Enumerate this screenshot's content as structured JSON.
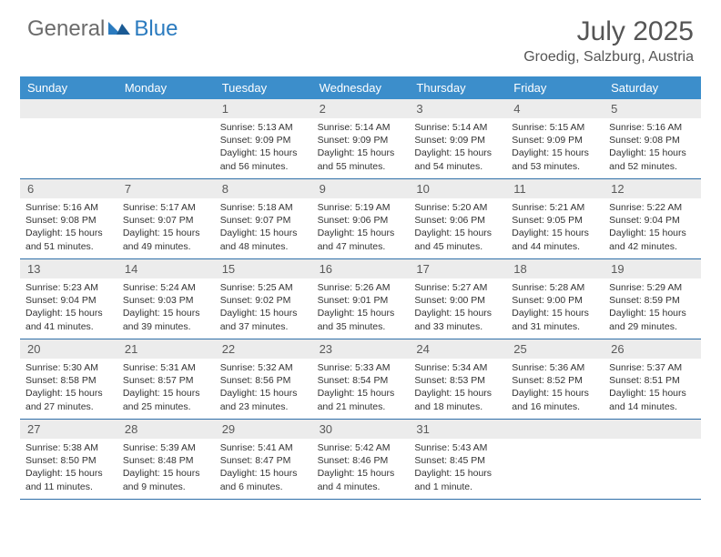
{
  "logo": {
    "text1": "General",
    "text2": "Blue"
  },
  "title": "July 2025",
  "location": "Groedig, Salzburg, Austria",
  "colors": {
    "header_bg": "#3c8ecb",
    "border": "#2f6fa8",
    "daynum_bg": "#ececec",
    "logo_gray": "#6b6b6b",
    "logo_blue": "#2b7bbf"
  },
  "weekdays": [
    "Sunday",
    "Monday",
    "Tuesday",
    "Wednesday",
    "Thursday",
    "Friday",
    "Saturday"
  ],
  "first_weekday_index": 2,
  "days": [
    {
      "n": 1,
      "sunrise": "5:13 AM",
      "sunset": "9:09 PM",
      "daylight": "15 hours and 56 minutes."
    },
    {
      "n": 2,
      "sunrise": "5:14 AM",
      "sunset": "9:09 PM",
      "daylight": "15 hours and 55 minutes."
    },
    {
      "n": 3,
      "sunrise": "5:14 AM",
      "sunset": "9:09 PM",
      "daylight": "15 hours and 54 minutes."
    },
    {
      "n": 4,
      "sunrise": "5:15 AM",
      "sunset": "9:09 PM",
      "daylight": "15 hours and 53 minutes."
    },
    {
      "n": 5,
      "sunrise": "5:16 AM",
      "sunset": "9:08 PM",
      "daylight": "15 hours and 52 minutes."
    },
    {
      "n": 6,
      "sunrise": "5:16 AM",
      "sunset": "9:08 PM",
      "daylight": "15 hours and 51 minutes."
    },
    {
      "n": 7,
      "sunrise": "5:17 AM",
      "sunset": "9:07 PM",
      "daylight": "15 hours and 49 minutes."
    },
    {
      "n": 8,
      "sunrise": "5:18 AM",
      "sunset": "9:07 PM",
      "daylight": "15 hours and 48 minutes."
    },
    {
      "n": 9,
      "sunrise": "5:19 AM",
      "sunset": "9:06 PM",
      "daylight": "15 hours and 47 minutes."
    },
    {
      "n": 10,
      "sunrise": "5:20 AM",
      "sunset": "9:06 PM",
      "daylight": "15 hours and 45 minutes."
    },
    {
      "n": 11,
      "sunrise": "5:21 AM",
      "sunset": "9:05 PM",
      "daylight": "15 hours and 44 minutes."
    },
    {
      "n": 12,
      "sunrise": "5:22 AM",
      "sunset": "9:04 PM",
      "daylight": "15 hours and 42 minutes."
    },
    {
      "n": 13,
      "sunrise": "5:23 AM",
      "sunset": "9:04 PM",
      "daylight": "15 hours and 41 minutes."
    },
    {
      "n": 14,
      "sunrise": "5:24 AM",
      "sunset": "9:03 PM",
      "daylight": "15 hours and 39 minutes."
    },
    {
      "n": 15,
      "sunrise": "5:25 AM",
      "sunset": "9:02 PM",
      "daylight": "15 hours and 37 minutes."
    },
    {
      "n": 16,
      "sunrise": "5:26 AM",
      "sunset": "9:01 PM",
      "daylight": "15 hours and 35 minutes."
    },
    {
      "n": 17,
      "sunrise": "5:27 AM",
      "sunset": "9:00 PM",
      "daylight": "15 hours and 33 minutes."
    },
    {
      "n": 18,
      "sunrise": "5:28 AM",
      "sunset": "9:00 PM",
      "daylight": "15 hours and 31 minutes."
    },
    {
      "n": 19,
      "sunrise": "5:29 AM",
      "sunset": "8:59 PM",
      "daylight": "15 hours and 29 minutes."
    },
    {
      "n": 20,
      "sunrise": "5:30 AM",
      "sunset": "8:58 PM",
      "daylight": "15 hours and 27 minutes."
    },
    {
      "n": 21,
      "sunrise": "5:31 AM",
      "sunset": "8:57 PM",
      "daylight": "15 hours and 25 minutes."
    },
    {
      "n": 22,
      "sunrise": "5:32 AM",
      "sunset": "8:56 PM",
      "daylight": "15 hours and 23 minutes."
    },
    {
      "n": 23,
      "sunrise": "5:33 AM",
      "sunset": "8:54 PM",
      "daylight": "15 hours and 21 minutes."
    },
    {
      "n": 24,
      "sunrise": "5:34 AM",
      "sunset": "8:53 PM",
      "daylight": "15 hours and 18 minutes."
    },
    {
      "n": 25,
      "sunrise": "5:36 AM",
      "sunset": "8:52 PM",
      "daylight": "15 hours and 16 minutes."
    },
    {
      "n": 26,
      "sunrise": "5:37 AM",
      "sunset": "8:51 PM",
      "daylight": "15 hours and 14 minutes."
    },
    {
      "n": 27,
      "sunrise": "5:38 AM",
      "sunset": "8:50 PM",
      "daylight": "15 hours and 11 minutes."
    },
    {
      "n": 28,
      "sunrise": "5:39 AM",
      "sunset": "8:48 PM",
      "daylight": "15 hours and 9 minutes."
    },
    {
      "n": 29,
      "sunrise": "5:41 AM",
      "sunset": "8:47 PM",
      "daylight": "15 hours and 6 minutes."
    },
    {
      "n": 30,
      "sunrise": "5:42 AM",
      "sunset": "8:46 PM",
      "daylight": "15 hours and 4 minutes."
    },
    {
      "n": 31,
      "sunrise": "5:43 AM",
      "sunset": "8:45 PM",
      "daylight": "15 hours and 1 minute."
    }
  ]
}
